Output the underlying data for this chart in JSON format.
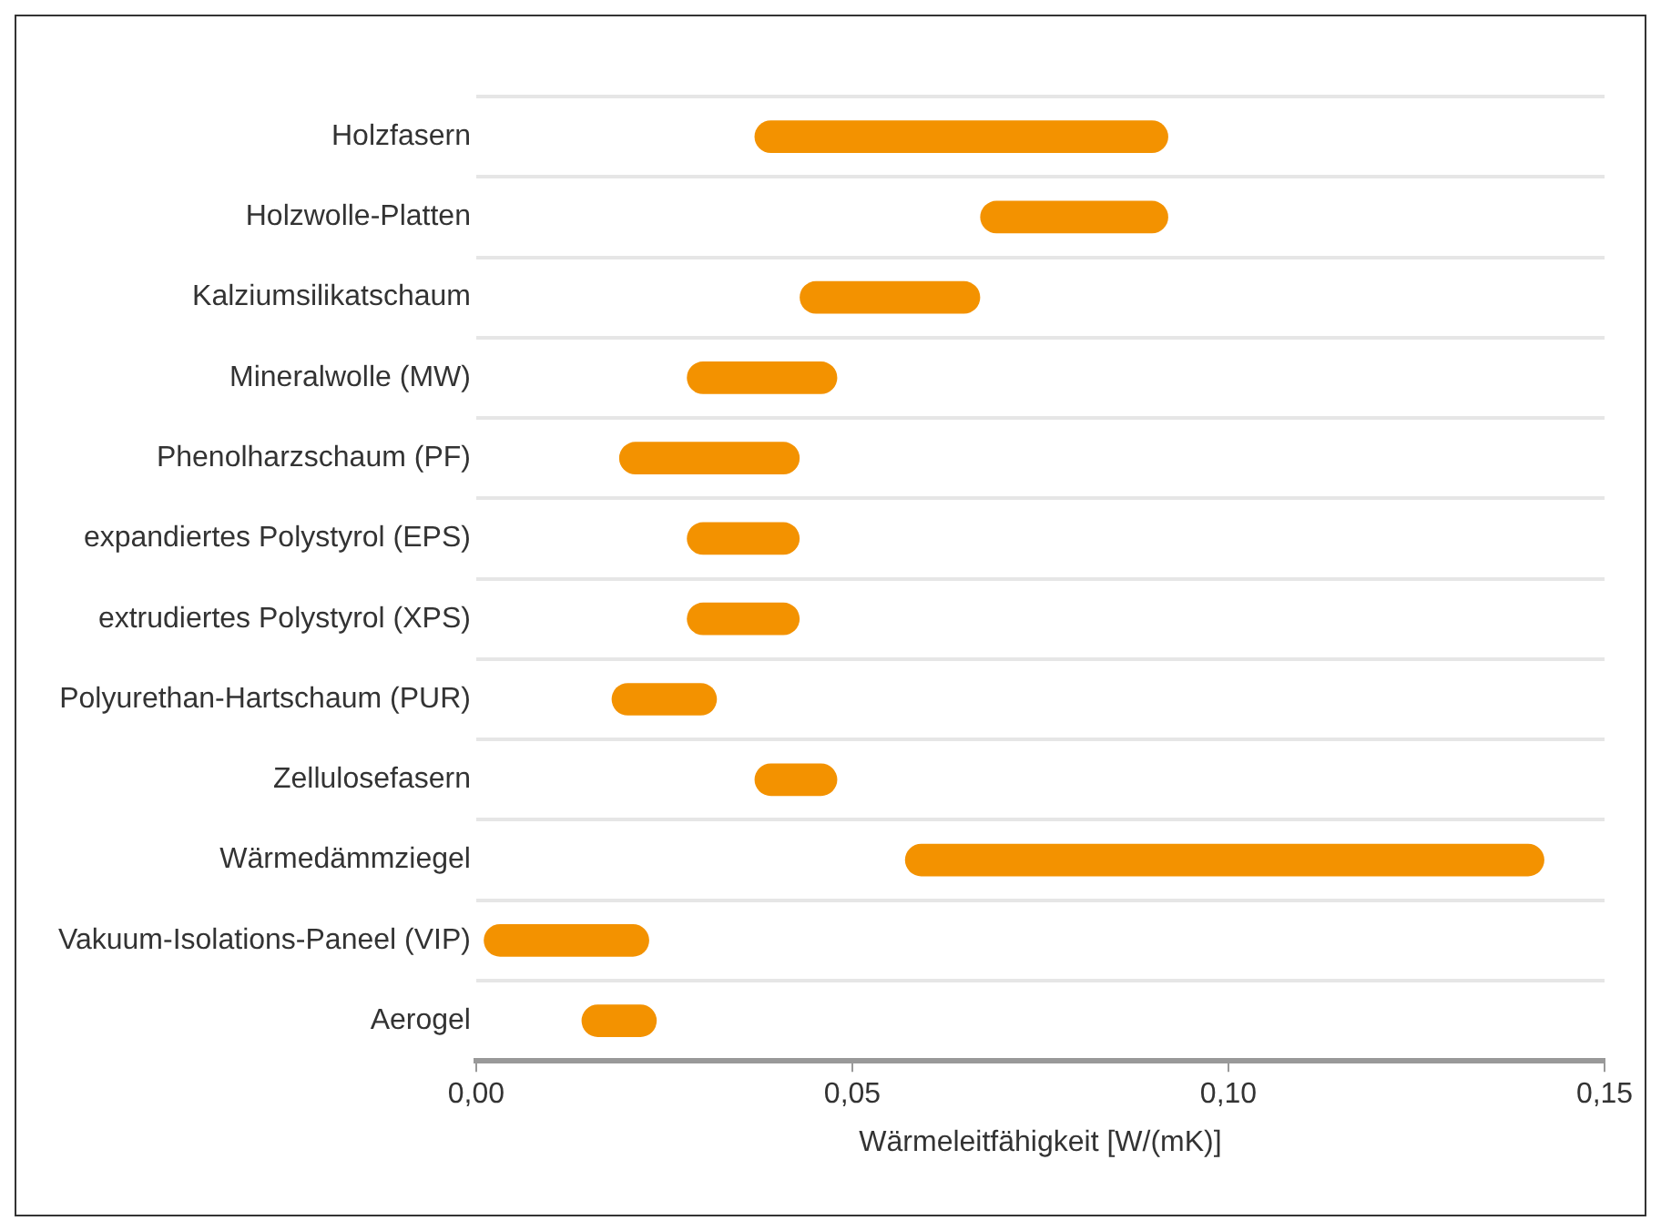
{
  "chart_data": {
    "type": "bar",
    "orientation": "horizontal",
    "xlabel": "Wärmeleitfähigkeit [W/(mK)]",
    "categories": [
      "Holzfasern",
      "Holzwolle-Platten",
      "Kalziumsilikatschaum",
      "Mineralwolle (MW)",
      "Phenolharzschaum (PF)",
      "expandiertes Polystyrol (EPS)",
      "extrudiertes Polystyrol (XPS)",
      "Polyurethan-Hartschaum (PUR)",
      "Zellulosefasern",
      "Wärmedämmziegel",
      "Vakuum-Isolations-Paneel (VIP)",
      "Aerogel"
    ],
    "base": [
      0.037,
      0.067,
      0.043,
      0.028,
      0.019,
      0.028,
      0.028,
      0.018,
      0.037,
      0.057,
      0.001,
      0.014
    ],
    "values": [
      0.055,
      0.025,
      0.024,
      0.02,
      0.024,
      0.015,
      0.015,
      0.014,
      0.011,
      0.085,
      0.022,
      0.01
    ],
    "color": "#f39200",
    "xlim": [
      0,
      0.15
    ],
    "xticks": [
      {
        "value": 0,
        "label": "0,00"
      },
      {
        "value": 0.05,
        "label": "0,05"
      },
      {
        "value": 0.1,
        "label": "0,10"
      },
      {
        "value": 0.15,
        "label": "0,15"
      }
    ],
    "grid": "y",
    "legend": false
  }
}
